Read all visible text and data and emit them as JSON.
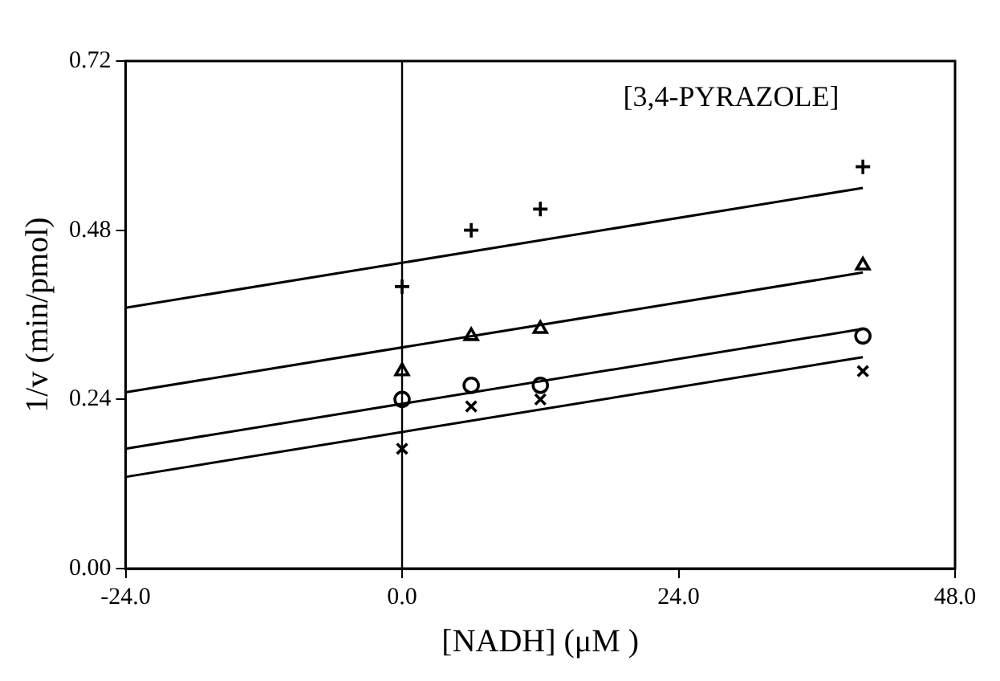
{
  "chart_data": {
    "type": "scatter",
    "xlabel": "[NADH] (μM )",
    "ylabel": "1/v (min/pmol)",
    "annotations": [
      "[3,4-PYRAZOLE]"
    ],
    "xlim": [
      -24,
      48
    ],
    "xticks": [
      {
        "value": -24,
        "label": "-24.0"
      },
      {
        "value": 0,
        "label": "0.0"
      },
      {
        "value": 24,
        "label": "24.0"
      },
      {
        "value": 48,
        "label": "48.0"
      }
    ],
    "ylim": [
      0,
      0.72
    ],
    "yticks": [
      {
        "value": 0,
        "label": "0.00"
      },
      {
        "value": 0.24,
        "label": "0.24"
      },
      {
        "value": 0.48,
        "label": "0.48"
      },
      {
        "value": 0.72,
        "label": "0.72"
      }
    ],
    "grid": false,
    "legend": false,
    "ref_lines": [
      {
        "axis": "x",
        "value": 0,
        "color": "#000000"
      }
    ],
    "series": [
      {
        "type": "scatter",
        "marker": "cross",
        "color": "#000000",
        "x": [
          0,
          6,
          12,
          40
        ],
        "values": [
          0.4,
          0.48,
          0.51,
          0.57
        ]
      },
      {
        "type": "scatter",
        "marker": "triangle",
        "color": "#000000",
        "x": [
          0,
          6,
          12,
          40
        ],
        "values": [
          0.28,
          0.33,
          0.34,
          0.43
        ]
      },
      {
        "type": "scatter",
        "marker": "circle",
        "color": "#000000",
        "x": [
          0,
          6,
          12,
          40
        ],
        "values": [
          0.24,
          0.26,
          0.26,
          0.33
        ]
      },
      {
        "type": "scatter",
        "marker": "x",
        "color": "#000000",
        "x": [
          0,
          6,
          12,
          40
        ],
        "values": [
          0.17,
          0.23,
          0.24,
          0.28
        ]
      },
      {
        "type": "line",
        "marker": "none",
        "color": "#000000",
        "x": [
          -24,
          40
        ],
        "values": [
          0.37,
          0.54
        ]
      },
      {
        "type": "line",
        "marker": "none",
        "color": "#000000",
        "x": [
          -24,
          40
        ],
        "values": [
          0.25,
          0.42
        ]
      },
      {
        "type": "line",
        "marker": "none",
        "color": "#000000",
        "x": [
          -24,
          40
        ],
        "values": [
          0.17,
          0.34
        ]
      },
      {
        "type": "line",
        "marker": "none",
        "color": "#000000",
        "x": [
          -24,
          40
        ],
        "values": [
          0.13,
          0.3
        ]
      }
    ]
  }
}
